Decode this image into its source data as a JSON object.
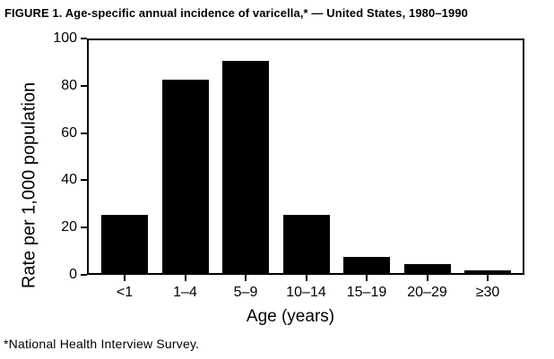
{
  "chart_data": {
    "type": "bar",
    "title": "FIGURE 1. Age-specific annual incidence of varicella,* — United States, 1980–1990",
    "categories": [
      "<1",
      "1–4",
      "5–9",
      "10–14",
      "15–19",
      "20–29",
      "≥30"
    ],
    "values": [
      25,
      83,
      91,
      25,
      7,
      4,
      1
    ],
    "xlabel": "Age (years)",
    "ylabel": "Rate per 1,000 population",
    "ylim": [
      0,
      100
    ],
    "y_ticks": [
      0,
      20,
      40,
      60,
      80,
      100
    ],
    "bar_color": "#000000",
    "background_color": "#ffffff",
    "grid": false,
    "legend": "none",
    "footnote": "*National Health Interview Survey."
  }
}
